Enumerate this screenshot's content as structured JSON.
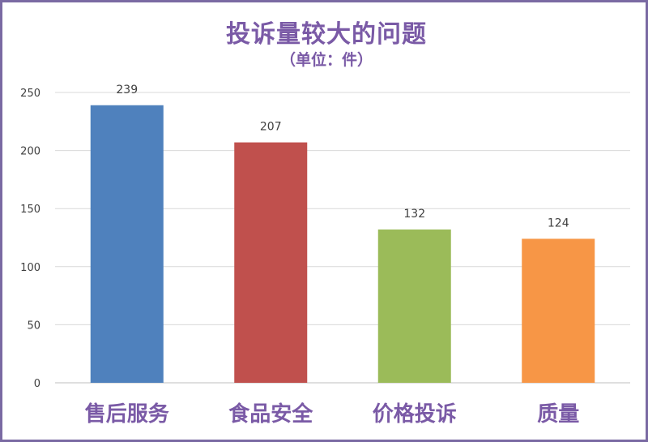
{
  "chart_data": {
    "type": "bar",
    "title": "投诉量较大的问题",
    "subtitle": "（单位：件）",
    "categories": [
      "售后服务",
      "食品安全",
      "价格投诉",
      "质量"
    ],
    "values": [
      239,
      207,
      132,
      124
    ],
    "data_labels": [
      "239",
      "207",
      "132",
      "124"
    ],
    "colors": [
      "#4f81bd",
      "#c0504d",
      "#9bbb59",
      "#f79646"
    ],
    "ylim": [
      0,
      250
    ],
    "yticks": [
      "0",
      "50",
      "100",
      "150",
      "200",
      "250"
    ],
    "grid": true,
    "legend": "none"
  }
}
